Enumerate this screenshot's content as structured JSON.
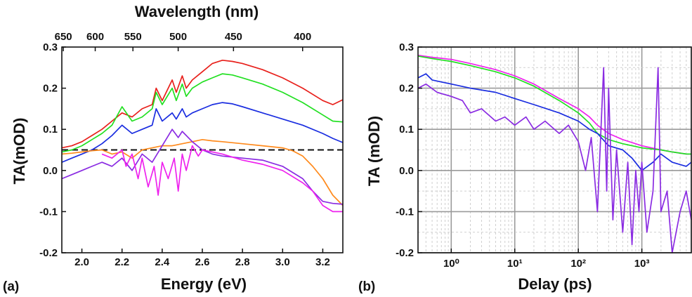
{
  "chart_data": [
    {
      "type": "line",
      "panel_label": "(a)",
      "xlabel": "Energy (eV)",
      "ylabel": "TA(mOD)",
      "top_axis_label": "Wavelength (nm)",
      "xlim": [
        1.9,
        3.3
      ],
      "ylim": [
        -0.2,
        0.3
      ],
      "x_ticks": [
        "2.0",
        "2.2",
        "2.4",
        "2.6",
        "2.8",
        "3.0",
        "3.2"
      ],
      "x_tick_values": [
        2.0,
        2.2,
        2.4,
        2.6,
        2.8,
        3.0,
        3.2
      ],
      "y_ticks": [
        "-0.2",
        "-0.1",
        "0.0",
        "0.1",
        "0.2",
        "0.3"
      ],
      "y_tick_values": [
        -0.2,
        -0.1,
        0.0,
        0.1,
        0.2,
        0.3
      ],
      "top_ticks": [
        "650",
        "600",
        "550",
        "500",
        "450",
        "400"
      ],
      "top_tick_nm": [
        650,
        600,
        550,
        500,
        450,
        400
      ],
      "reference_line": {
        "y": 0.05,
        "color": "#111111",
        "style": "dashed"
      },
      "series": [
        {
          "color": "#e8201b",
          "x": [
            1.9,
            1.95,
            2.0,
            2.05,
            2.1,
            2.15,
            2.2,
            2.25,
            2.3,
            2.35,
            2.37,
            2.4,
            2.45,
            2.47,
            2.5,
            2.52,
            2.55,
            2.6,
            2.65,
            2.7,
            2.75,
            2.8,
            2.9,
            3.0,
            3.1,
            3.2,
            3.25,
            3.3
          ],
          "y": [
            0.055,
            0.06,
            0.07,
            0.085,
            0.1,
            0.12,
            0.14,
            0.13,
            0.15,
            0.16,
            0.2,
            0.17,
            0.22,
            0.19,
            0.23,
            0.2,
            0.22,
            0.24,
            0.26,
            0.268,
            0.265,
            0.26,
            0.245,
            0.225,
            0.2,
            0.17,
            0.16,
            0.172
          ]
        },
        {
          "color": "#22e022",
          "x": [
            1.9,
            1.95,
            2.0,
            2.05,
            2.1,
            2.15,
            2.2,
            2.25,
            2.3,
            2.35,
            2.37,
            2.4,
            2.45,
            2.47,
            2.5,
            2.52,
            2.55,
            2.6,
            2.65,
            2.7,
            2.75,
            2.8,
            2.9,
            3.0,
            3.1,
            3.2,
            3.25,
            3.3
          ],
          "y": [
            0.045,
            0.05,
            0.06,
            0.075,
            0.09,
            0.11,
            0.155,
            0.12,
            0.13,
            0.15,
            0.19,
            0.16,
            0.2,
            0.17,
            0.21,
            0.18,
            0.2,
            0.215,
            0.225,
            0.235,
            0.232,
            0.225,
            0.21,
            0.19,
            0.165,
            0.135,
            0.12,
            0.118
          ]
        },
        {
          "color": "#1a2de0",
          "x": [
            1.9,
            1.95,
            2.0,
            2.05,
            2.1,
            2.15,
            2.2,
            2.25,
            2.3,
            2.35,
            2.37,
            2.4,
            2.45,
            2.47,
            2.5,
            2.52,
            2.55,
            2.6,
            2.65,
            2.7,
            2.75,
            2.8,
            2.9,
            3.0,
            3.1,
            3.2,
            3.25,
            3.3
          ],
          "y": [
            0.02,
            0.03,
            0.04,
            0.05,
            0.065,
            0.085,
            0.11,
            0.09,
            0.1,
            0.11,
            0.15,
            0.12,
            0.14,
            0.125,
            0.15,
            0.13,
            0.14,
            0.15,
            0.16,
            0.165,
            0.162,
            0.155,
            0.14,
            0.125,
            0.11,
            0.09,
            0.078,
            0.068
          ]
        },
        {
          "color": "#ff8a1c",
          "x": [
            1.9,
            1.95,
            2.0,
            2.05,
            2.1,
            2.15,
            2.2,
            2.25,
            2.3,
            2.35,
            2.4,
            2.45,
            2.5,
            2.55,
            2.6,
            2.65,
            2.7,
            2.8,
            2.9,
            3.0,
            3.05,
            3.1,
            3.15,
            3.2,
            3.25,
            3.3
          ],
          "y": [
            0.04,
            0.042,
            0.045,
            0.048,
            0.05,
            0.04,
            0.045,
            0.03,
            0.05,
            0.055,
            0.06,
            0.06,
            0.065,
            0.07,
            0.075,
            0.072,
            0.07,
            0.065,
            0.06,
            0.055,
            0.048,
            0.035,
            0.01,
            -0.02,
            -0.06,
            -0.085
          ]
        },
        {
          "color": "#8a2be2",
          "x": [
            1.9,
            1.95,
            2.0,
            2.05,
            2.1,
            2.15,
            2.2,
            2.25,
            2.3,
            2.35,
            2.4,
            2.45,
            2.48,
            2.5,
            2.55,
            2.6,
            2.65,
            2.7,
            2.8,
            2.9,
            3.0,
            3.1,
            3.15,
            3.2,
            3.25,
            3.3
          ],
          "y": [
            -0.02,
            -0.01,
            0.0,
            0.01,
            0.02,
            0.01,
            0.03,
            0.0,
            0.04,
            0.02,
            0.06,
            0.1,
            0.08,
            0.095,
            0.07,
            0.05,
            0.04,
            0.035,
            0.03,
            0.025,
            0.01,
            -0.02,
            -0.05,
            -0.075,
            -0.08,
            -0.082
          ]
        },
        {
          "color": "#ee22ee",
          "x": [
            2.1,
            2.15,
            2.2,
            2.22,
            2.25,
            2.28,
            2.3,
            2.33,
            2.36,
            2.38,
            2.4,
            2.43,
            2.46,
            2.48,
            2.5,
            2.52,
            2.55,
            2.58,
            2.6,
            2.65,
            2.7,
            2.8,
            2.9,
            3.0,
            3.1,
            3.15,
            3.2,
            3.25,
            3.3
          ],
          "y": [
            0.04,
            0.03,
            0.05,
            0.01,
            0.04,
            -0.02,
            0.03,
            -0.04,
            0.01,
            -0.06,
            0.02,
            -0.02,
            0.03,
            -0.05,
            0.04,
            0.0,
            0.06,
            0.035,
            0.05,
            0.045,
            0.04,
            0.025,
            0.015,
            0.0,
            -0.03,
            -0.05,
            -0.085,
            -0.1,
            -0.1
          ]
        }
      ]
    },
    {
      "type": "line",
      "panel_label": "(b)",
      "xlabel": "Delay (ps)",
      "ylabel": "TA (mOD)",
      "x_scale": "log",
      "xlim": [
        0.3,
        6000
      ],
      "ylim": [
        -0.2,
        0.3
      ],
      "x_ticks": [
        "10⁰",
        "10¹",
        "10²",
        "10³"
      ],
      "x_tick_values": [
        1,
        10,
        100,
        1000
      ],
      "y_ticks": [
        "-0.2",
        "-0.1",
        "0.0",
        "0.1",
        "0.2",
        "0.3"
      ],
      "y_tick_values": [
        -0.2,
        -0.1,
        0.0,
        0.1,
        0.2,
        0.3
      ],
      "grid": true,
      "series": [
        {
          "color": "#ee22ee",
          "x": [
            0.3,
            0.5,
            1,
            2,
            5,
            10,
            20,
            50,
            100,
            150,
            200,
            300,
            500,
            1000,
            2000,
            3000,
            5000,
            6000
          ],
          "y": [
            0.28,
            0.275,
            0.27,
            0.26,
            0.245,
            0.23,
            0.21,
            0.175,
            0.15,
            0.13,
            0.11,
            0.09,
            0.075,
            0.06,
            0.05,
            0.045,
            0.04,
            0.04
          ]
        },
        {
          "color": "#22e022",
          "x": [
            0.3,
            0.5,
            1,
            2,
            5,
            10,
            20,
            50,
            100,
            150,
            200,
            300,
            500,
            1000,
            2000,
            3000,
            5000,
            6000
          ],
          "y": [
            0.278,
            0.272,
            0.265,
            0.255,
            0.24,
            0.225,
            0.205,
            0.17,
            0.14,
            0.115,
            0.09,
            0.075,
            0.065,
            0.055,
            0.05,
            0.045,
            0.04,
            0.04
          ]
        },
        {
          "color": "#1a2de0",
          "x": [
            0.3,
            0.4,
            0.5,
            1,
            2,
            5,
            10,
            20,
            50,
            100,
            150,
            200,
            300,
            500,
            700,
            1000,
            1500,
            2000,
            3000,
            5000,
            6000
          ],
          "y": [
            0.225,
            0.235,
            0.22,
            0.21,
            0.2,
            0.19,
            0.175,
            0.16,
            0.14,
            0.12,
            0.1,
            0.09,
            0.06,
            0.05,
            0.03,
            0.0,
            0.02,
            0.04,
            0.02,
            0.01,
            0.02
          ]
        },
        {
          "color": "#8a2be2",
          "x": [
            0.3,
            0.4,
            0.6,
            1,
            1.5,
            2,
            3,
            5,
            7,
            10,
            15,
            20,
            30,
            50,
            70,
            100,
            130,
            160,
            200,
            250,
            280,
            300,
            350,
            400,
            500,
            600,
            700,
            800,
            900,
            1000,
            1200,
            1500,
            1800,
            2000,
            2500,
            3000,
            4000,
            5000,
            6000
          ],
          "y": [
            0.2,
            0.21,
            0.19,
            0.18,
            0.17,
            0.14,
            0.15,
            0.12,
            0.13,
            0.11,
            0.13,
            0.1,
            0.12,
            0.09,
            0.11,
            0.07,
            0.0,
            0.08,
            -0.1,
            0.25,
            -0.05,
            0.2,
            -0.12,
            0.05,
            -0.15,
            0.02,
            -0.18,
            0.0,
            -0.1,
            0.02,
            -0.15,
            -0.05,
            0.25,
            -0.1,
            -0.05,
            -0.2,
            -0.1,
            -0.05,
            -0.12
          ]
        }
      ]
    }
  ]
}
